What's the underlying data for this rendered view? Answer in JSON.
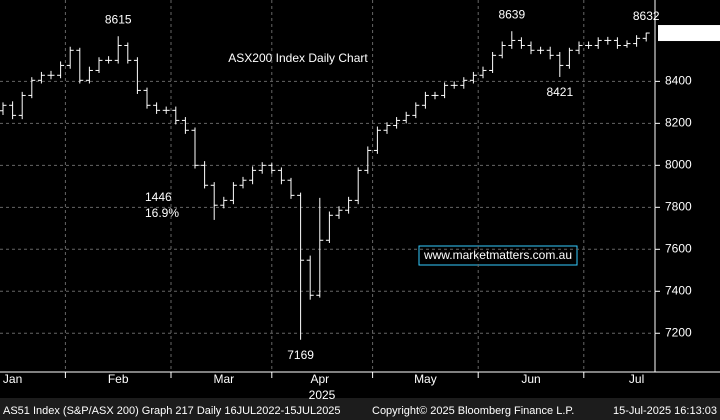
{
  "chart_data": {
    "type": "ohlc",
    "title": "ASX200 Index Daily Chart",
    "watermark": "www.marketmatters.com.au",
    "year_label": "2025",
    "annotations": [
      "1446",
      "16.9%"
    ],
    "footer": [
      "AS51 Index (S&P/ASX 200) Graph 217  Daily 16JUL2022-15JUL2025",
      "Copyright© 2025 Bloomberg Finance L.P.",
      "15-Jul-2025 16:13:03"
    ],
    "bar_color": "#ffffff",
    "title_color": "#7fd48f",
    "annotation_color": "#f39c34",
    "watermark_color": "#33ccff",
    "grid": true,
    "open": [
      8260,
      8286,
      8238,
      8333,
      8405,
      8429,
      8429,
      8476,
      8548,
      8405,
      8452,
      8500,
      8500,
      8571,
      8500,
      8357,
      8286,
      8262,
      8262,
      8214,
      8167,
      8000,
      7905,
      7810,
      7833,
      7905,
      7929,
      7976,
      8000,
      7976,
      7929,
      7857,
      7548,
      7381,
      7643,
      7762,
      7786,
      7833,
      7976,
      8071,
      8167,
      8190,
      8214,
      8238,
      8286,
      8333,
      8333,
      8381,
      8381,
      8405,
      8429,
      8452,
      8524,
      8571,
      8595,
      8571,
      8548,
      8548,
      8524,
      8476,
      8548,
      8571,
      8571,
      8595,
      8595,
      8571,
      8580,
      8605
    ],
    "high": [
      8300,
      8305,
      8350,
      8420,
      8445,
      8450,
      8495,
      8565,
      8560,
      8470,
      8515,
      8520,
      8615,
      8585,
      8515,
      8370,
      8300,
      8280,
      8280,
      8230,
      8180,
      8020,
      7920,
      7850,
      7920,
      7945,
      7995,
      8015,
      8010,
      7990,
      7940,
      7870,
      7570,
      7845,
      7780,
      7805,
      7850,
      7990,
      8090,
      8185,
      8205,
      8230,
      8255,
      8300,
      8350,
      8350,
      8395,
      8400,
      8420,
      8445,
      8470,
      8540,
      8590,
      8639,
      8610,
      8590,
      8565,
      8565,
      8540,
      8560,
      8590,
      8590,
      8610,
      8612,
      8610,
      8595,
      8620,
      8632
    ],
    "low": [
      8240,
      8220,
      8220,
      8320,
      8390,
      8410,
      8415,
      8460,
      8390,
      8390,
      8440,
      8485,
      8485,
      8485,
      8340,
      8270,
      8245,
      8245,
      8195,
      8150,
      7985,
      7890,
      7740,
      7795,
      7815,
      7890,
      7910,
      7960,
      7960,
      7910,
      7840,
      7169,
      7360,
      7370,
      7630,
      7745,
      7770,
      7815,
      7960,
      8055,
      8150,
      8175,
      8200,
      8225,
      8270,
      8315,
      8320,
      8365,
      8365,
      8390,
      8415,
      8440,
      8510,
      8555,
      8555,
      8530,
      8530,
      8505,
      8421,
      8460,
      8530,
      8555,
      8555,
      8575,
      8555,
      8560,
      8565,
      8590
    ],
    "close": [
      8286,
      8238,
      8333,
      8405,
      8429,
      8429,
      8476,
      8548,
      8405,
      8452,
      8500,
      8500,
      8571,
      8500,
      8357,
      8286,
      8262,
      8262,
      8214,
      8167,
      8000,
      7905,
      7810,
      7833,
      7905,
      7929,
      7976,
      8000,
      7976,
      7929,
      7857,
      7548,
      7381,
      7643,
      7762,
      7786,
      7833,
      7976,
      8071,
      8167,
      8190,
      8214,
      8238,
      8286,
      8333,
      8333,
      8381,
      8381,
      8405,
      8429,
      8452,
      8524,
      8571,
      8595,
      8571,
      8548,
      8548,
      8524,
      8476,
      8548,
      8571,
      8571,
      8595,
      8595,
      8571,
      8580,
      8605,
      8630.301
    ],
    "xticks": [
      {
        "value": 1,
        "label": "Jan"
      },
      {
        "value": 12,
        "label": "Feb"
      },
      {
        "value": 23,
        "label": "Mar"
      },
      {
        "value": 33,
        "label": "Apr"
      },
      {
        "value": 44,
        "label": "May"
      },
      {
        "value": 55,
        "label": "Jun"
      },
      {
        "value": 66,
        "label": "Jul"
      }
    ],
    "ylim": [
      7025,
      8740
    ],
    "yticks": [
      7200,
      7400,
      7600,
      7800,
      8000,
      8200,
      8400
    ]
  }
}
